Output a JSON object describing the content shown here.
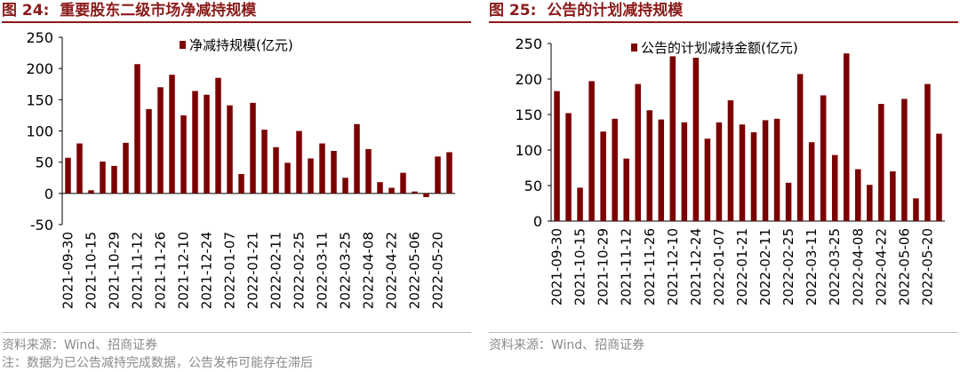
{
  "figures": [
    {
      "number_label": "图 24:",
      "title": "重要股东二级市场净减持规模",
      "source": "资料来源：Wind、招商证券",
      "note": "注：数据为已公告减持完成数据，公告发布可能存在滞后",
      "color": "#7b0000"
    },
    {
      "number_label": "图 25:",
      "title": "公告的计划减持规模",
      "source": "资料来源：Wind、招商证券",
      "color": "#7b0000"
    }
  ],
  "chart_data": [
    {
      "type": "bar",
      "title": "重要股东二级市场净减持规模",
      "legend": "净减持规模(亿元)",
      "legend_position": "top",
      "ylim": [
        -50,
        250
      ],
      "yticks": [
        -50,
        0,
        50,
        100,
        150,
        200,
        250
      ],
      "grid": false,
      "x_tick_labels": [
        "2021-09-30",
        "2021-10-15",
        "2021-10-29",
        "2021-11-12",
        "2021-11-26",
        "2021-12-10",
        "2021-12-24",
        "2022-01-07",
        "2022-01-21",
        "2022-02-11",
        "2022-02-25",
        "2022-03-11",
        "2022-03-25",
        "2022-04-08",
        "2022-04-22",
        "2022-05-06",
        "2022-05-20"
      ],
      "values": [
        57,
        80,
        5,
        51,
        44,
        81,
        207,
        135,
        170,
        190,
        125,
        164,
        158,
        185,
        141,
        31,
        145,
        102,
        74,
        49,
        100,
        56,
        80,
        68,
        25,
        111,
        71,
        18,
        9,
        33,
        3,
        -6,
        59,
        66
      ]
    },
    {
      "type": "bar",
      "title": "公告的计划减持规模",
      "legend": "公告的计划减持金额(亿元)",
      "legend_position": "top",
      "ylim": [
        0,
        250
      ],
      "yticks": [
        0,
        50,
        100,
        150,
        200,
        250
      ],
      "grid": false,
      "x_tick_labels": [
        "2021-09-30",
        "2021-10-15",
        "2021-10-29",
        "2021-11-12",
        "2021-11-26",
        "2021-12-10",
        "2021-12-24",
        "2022-01-07",
        "2022-01-21",
        "2022-02-11",
        "2022-02-25",
        "2022-03-11",
        "2022-03-25",
        "2022-04-08",
        "2022-04-22",
        "2022-05-06",
        "2022-05-20"
      ],
      "values": [
        183,
        152,
        47,
        197,
        126,
        144,
        88,
        193,
        156,
        143,
        232,
        139,
        230,
        116,
        139,
        170,
        136,
        125,
        142,
        144,
        54,
        207,
        111,
        177,
        93,
        236,
        73,
        51,
        165,
        70,
        172,
        32,
        193,
        123
      ]
    }
  ]
}
